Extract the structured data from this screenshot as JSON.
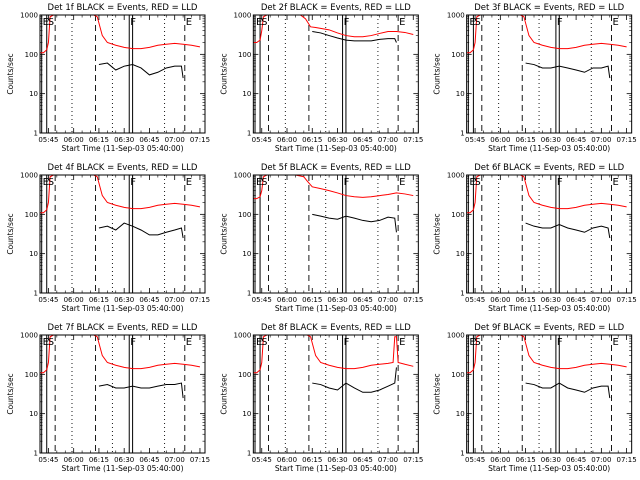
{
  "chart_data": {
    "type": "line",
    "layout": {
      "rows": 3,
      "cols": 3
    },
    "x_axis": {
      "label": "Start Time (11-Sep-03 05:40:00)",
      "range": [
        "05:40",
        "07:18"
      ],
      "ticks": [
        "05:45",
        "06:00",
        "06:15",
        "06:30",
        "06:45",
        "07:00",
        "07:15"
      ]
    },
    "y_axis": {
      "label": "Counts/sec",
      "scale": "log",
      "range": [
        1,
        1000
      ],
      "ticks": [
        "1",
        "10",
        "100",
        "1000"
      ]
    },
    "series_colors": {
      "events": "#000000",
      "lld": "#ff0000"
    },
    "marker_labels": [
      "E",
      "S",
      "F",
      "E"
    ],
    "panels": [
      {
        "title": "Det 1f BLACK = Events, RED = LLD",
        "events": {
          "x": [
            "06:15",
            "06:20",
            "06:25",
            "06:30",
            "06:35",
            "06:40",
            "06:45",
            "06:50",
            "06:55",
            "07:00",
            "07:04",
            "07:05"
          ],
          "y": [
            55,
            60,
            40,
            50,
            55,
            45,
            30,
            35,
            45,
            50,
            50,
            25
          ]
        },
        "lld": {
          "x": [
            "05:40",
            "05:42",
            "05:44",
            "05:45",
            "05:46",
            "05:48",
            "05:50",
            "06:12",
            "06:14",
            "06:17",
            "06:20",
            "06:25",
            "06:30",
            "06:35",
            "06:40",
            "06:45",
            "06:50",
            "06:55",
            "07:00",
            "07:05",
            "07:10",
            "07:15"
          ],
          "y": [
            110,
            110,
            130,
            200,
            900,
            1000,
            1000,
            1000,
            900,
            300,
            200,
            170,
            150,
            140,
            140,
            150,
            170,
            180,
            190,
            180,
            170,
            155
          ]
        }
      },
      {
        "title": "Det 2f BLACK = Events, RED = LLD",
        "events": {
          "x": [
            "06:15",
            "06:20",
            "06:25",
            "06:30",
            "06:35",
            "06:40",
            "06:45",
            "06:50",
            "06:55",
            "07:00",
            "07:04",
            "07:05"
          ],
          "y": [
            380,
            350,
            300,
            260,
            230,
            220,
            220,
            220,
            240,
            250,
            250,
            200
          ]
        },
        "lld": {
          "x": [
            "05:40",
            "05:42",
            "05:44",
            "05:45",
            "05:46",
            "05:48",
            "05:50",
            "06:05",
            "06:08",
            "06:11",
            "06:14",
            "06:17",
            "06:25",
            "06:30",
            "06:35",
            "06:40",
            "06:45",
            "06:50",
            "06:55",
            "07:00",
            "07:05",
            "07:10",
            "07:15"
          ],
          "y": [
            200,
            200,
            230,
            400,
            900,
            1000,
            1000,
            1000,
            1000,
            800,
            500,
            480,
            420,
            350,
            300,
            280,
            280,
            300,
            340,
            380,
            380,
            360,
            320
          ]
        }
      },
      {
        "title": "Det 3f BLACK = Events, RED = LLD",
        "events": {
          "x": [
            "06:15",
            "06:20",
            "06:25",
            "06:30",
            "06:35",
            "06:40",
            "06:45",
            "06:50",
            "06:55",
            "07:00",
            "07:04",
            "07:05"
          ],
          "y": [
            60,
            55,
            45,
            45,
            50,
            45,
            40,
            35,
            45,
            45,
            50,
            25
          ]
        },
        "lld": {
          "x": [
            "05:40",
            "05:42",
            "05:44",
            "05:45",
            "05:46",
            "05:48",
            "05:50",
            "06:12",
            "06:14",
            "06:17",
            "06:20",
            "06:25",
            "06:30",
            "06:35",
            "06:40",
            "06:45",
            "06:50",
            "06:55",
            "07:00",
            "07:05",
            "07:10",
            "07:15"
          ],
          "y": [
            110,
            110,
            130,
            200,
            900,
            1000,
            1000,
            1000,
            900,
            300,
            200,
            170,
            150,
            140,
            140,
            150,
            170,
            180,
            190,
            180,
            170,
            155
          ]
        }
      },
      {
        "title": "Det 4f BLACK = Events, RED = LLD",
        "events": {
          "x": [
            "06:15",
            "06:20",
            "06:25",
            "06:30",
            "06:35",
            "06:40",
            "06:45",
            "06:50",
            "06:55",
            "07:00",
            "07:04",
            "07:05"
          ],
          "y": [
            45,
            50,
            40,
            60,
            50,
            40,
            30,
            30,
            35,
            40,
            45,
            25
          ]
        },
        "lld": {
          "x": [
            "05:40",
            "05:42",
            "05:44",
            "05:45",
            "05:46",
            "05:48",
            "05:50",
            "06:12",
            "06:14",
            "06:17",
            "06:20",
            "06:25",
            "06:30",
            "06:35",
            "06:40",
            "06:45",
            "06:50",
            "06:55",
            "07:00",
            "07:05",
            "07:10",
            "07:15"
          ],
          "y": [
            110,
            110,
            130,
            200,
            900,
            1000,
            1000,
            1000,
            900,
            300,
            200,
            170,
            150,
            140,
            140,
            150,
            170,
            180,
            190,
            180,
            170,
            155
          ]
        }
      },
      {
        "title": "Det 5f BLACK = Events, RED = LLD",
        "events": {
          "x": [
            "06:15",
            "06:20",
            "06:25",
            "06:30",
            "06:35",
            "06:40",
            "06:45",
            "06:50",
            "06:55",
            "07:00",
            "07:04",
            "07:05"
          ],
          "y": [
            100,
            90,
            80,
            75,
            90,
            80,
            70,
            65,
            70,
            85,
            80,
            35
          ]
        },
        "lld": {
          "x": [
            "05:40",
            "05:42",
            "05:44",
            "05:45",
            "05:46",
            "05:48",
            "05:50",
            "06:00",
            "06:05",
            "06:10",
            "06:12",
            "06:15",
            "06:20",
            "06:25",
            "06:30",
            "06:35",
            "06:40",
            "06:45",
            "06:50",
            "06:55",
            "07:00",
            "07:05",
            "07:10",
            "07:15"
          ],
          "y": [
            250,
            250,
            280,
            400,
            900,
            1000,
            1000,
            1000,
            1000,
            900,
            700,
            500,
            450,
            400,
            350,
            300,
            280,
            270,
            280,
            300,
            320,
            350,
            330,
            300
          ]
        }
      },
      {
        "title": "Det 6f BLACK = Events, RED = LLD",
        "events": {
          "x": [
            "06:15",
            "06:20",
            "06:25",
            "06:30",
            "06:35",
            "06:40",
            "06:45",
            "06:50",
            "06:55",
            "07:00",
            "07:04",
            "07:05"
          ],
          "y": [
            60,
            50,
            45,
            45,
            55,
            45,
            40,
            35,
            45,
            50,
            45,
            25
          ]
        },
        "lld": {
          "x": [
            "05:40",
            "05:42",
            "05:44",
            "05:45",
            "05:46",
            "05:48",
            "05:50",
            "06:12",
            "06:14",
            "06:17",
            "06:20",
            "06:25",
            "06:30",
            "06:35",
            "06:40",
            "06:45",
            "06:50",
            "06:55",
            "07:00",
            "07:05",
            "07:10",
            "07:15"
          ],
          "y": [
            110,
            110,
            130,
            200,
            900,
            1000,
            1000,
            1000,
            900,
            300,
            200,
            170,
            150,
            140,
            140,
            150,
            170,
            180,
            190,
            180,
            170,
            155
          ]
        }
      },
      {
        "title": "Det 7f BLACK = Events, RED = LLD",
        "events": {
          "x": [
            "06:15",
            "06:20",
            "06:25",
            "06:30",
            "06:35",
            "06:40",
            "06:45",
            "06:50",
            "06:55",
            "07:00",
            "07:04",
            "07:05"
          ],
          "y": [
            50,
            55,
            45,
            45,
            50,
            45,
            45,
            50,
            55,
            55,
            60,
            25
          ]
        },
        "lld": {
          "x": [
            "05:40",
            "05:42",
            "05:44",
            "05:45",
            "05:46",
            "05:48",
            "05:50",
            "06:12",
            "06:14",
            "06:17",
            "06:20",
            "06:25",
            "06:30",
            "06:35",
            "06:40",
            "06:45",
            "06:50",
            "06:55",
            "07:00",
            "07:05",
            "07:10",
            "07:15"
          ],
          "y": [
            110,
            110,
            130,
            200,
            900,
            1000,
            1000,
            1000,
            900,
            300,
            200,
            170,
            150,
            140,
            140,
            150,
            170,
            180,
            190,
            180,
            170,
            155
          ]
        }
      },
      {
        "title": "Det 8f BLACK = Events, RED = LLD",
        "events": {
          "x": [
            "06:15",
            "06:20",
            "06:25",
            "06:30",
            "06:35",
            "06:40",
            "06:45",
            "06:50",
            "06:55",
            "07:00",
            "07:04",
            "07:05"
          ],
          "y": [
            60,
            55,
            45,
            40,
            60,
            45,
            35,
            35,
            40,
            50,
            60,
            150
          ]
        },
        "lld": {
          "x": [
            "05:40",
            "05:42",
            "05:44",
            "05:45",
            "05:46",
            "05:48",
            "05:50",
            "06:12",
            "06:14",
            "06:17",
            "06:20",
            "06:25",
            "06:30",
            "06:35",
            "06:40",
            "06:45",
            "06:50",
            "06:55",
            "07:00",
            "07:03",
            "07:04",
            "07:05",
            "07:06",
            "07:10",
            "07:15"
          ],
          "y": [
            110,
            110,
            130,
            200,
            900,
            1000,
            1000,
            1000,
            900,
            300,
            200,
            170,
            150,
            140,
            140,
            150,
            170,
            180,
            190,
            200,
            900,
            900,
            200,
            180,
            160
          ]
        }
      },
      {
        "title": "Det 9f BLACK = Events, RED = LLD",
        "events": {
          "x": [
            "06:15",
            "06:20",
            "06:25",
            "06:30",
            "06:35",
            "06:40",
            "06:45",
            "06:50",
            "06:55",
            "07:00",
            "07:04",
            "07:05"
          ],
          "y": [
            60,
            55,
            45,
            45,
            60,
            45,
            40,
            35,
            45,
            50,
            50,
            25
          ]
        },
        "lld": {
          "x": [
            "05:40",
            "05:42",
            "05:44",
            "05:45",
            "05:46",
            "05:48",
            "05:50",
            "06:12",
            "06:14",
            "06:17",
            "06:20",
            "06:25",
            "06:30",
            "06:35",
            "06:40",
            "06:45",
            "06:50",
            "06:55",
            "07:00",
            "07:05",
            "07:10",
            "07:15"
          ],
          "y": [
            110,
            110,
            130,
            200,
            900,
            1000,
            1000,
            1000,
            900,
            300,
            200,
            170,
            150,
            140,
            140,
            150,
            170,
            180,
            190,
            180,
            170,
            155
          ]
        }
      }
    ],
    "markers": {
      "solid": [
        "05:41",
        "05:44",
        "06:33",
        "06:35"
      ],
      "dashed": [
        "05:49",
        "06:13",
        "07:06"
      ],
      "dotted": [
        "05:59",
        "06:23",
        "06:54"
      ]
    },
    "grid": false,
    "legend": "none"
  }
}
